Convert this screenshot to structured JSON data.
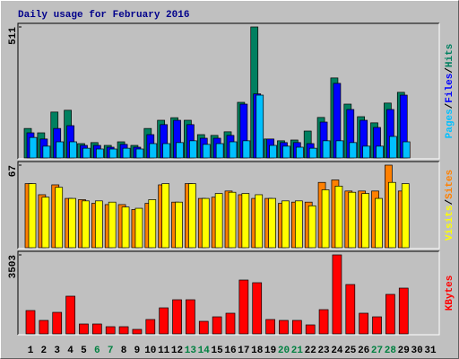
{
  "title": "Daily usage for February 2016",
  "legend_separator": "/",
  "chart_data": [
    {
      "type": "bar",
      "ylim": [
        0,
        511
      ],
      "yticks": [
        511
      ],
      "series": [
        {
          "name": "Hits",
          "color": "#008060",
          "values": [
            115,
            98,
            179,
            186,
            56,
            60,
            49,
            63,
            49,
            115,
            147,
            157,
            147,
            91,
            88,
            102,
            217,
            511,
            74,
            67,
            70,
            105,
            158,
            312,
            210,
            161,
            137,
            214,
            256,
            null,
            null
          ]
        },
        {
          "name": "Files",
          "color": "#0000FF",
          "values": [
            98,
            74,
            115,
            126,
            49,
            49,
            42,
            53,
            42,
            91,
            130,
            147,
            130,
            77,
            77,
            88,
            210,
            250,
            74,
            60,
            60,
            56,
            140,
            291,
            189,
            147,
            119,
            189,
            245,
            null,
            null
          ]
        },
        {
          "name": "Pages",
          "color": "#00C0FF",
          "values": [
            80,
            46,
            63,
            63,
            38,
            35,
            35,
            38,
            35,
            56,
            56,
            60,
            67,
            53,
            56,
            63,
            67,
            245,
            49,
            46,
            42,
            38,
            67,
            67,
            60,
            46,
            46,
            84,
            63,
            null,
            null
          ]
        }
      ]
    },
    {
      "type": "bar",
      "ylim": [
        0,
        67
      ],
      "yticks": [
        67
      ],
      "series": [
        {
          "name": "Sites",
          "color": "#FF8000",
          "values": [
            52,
            43,
            51,
            40,
            39,
            36,
            35,
            35,
            31,
            36,
            51,
            37,
            52,
            40,
            41,
            46,
            43,
            40,
            40,
            36,
            37,
            37,
            53,
            55,
            46,
            46,
            46,
            67,
            46,
            null,
            null
          ]
        },
        {
          "name": "Visits",
          "color": "#FFFF00",
          "values": [
            52,
            41,
            49,
            40,
            38,
            38,
            37,
            33,
            32,
            39,
            52,
            37,
            52,
            40,
            44,
            45,
            44,
            43,
            40,
            38,
            38,
            34,
            47,
            50,
            45,
            44,
            40,
            53,
            52,
            null,
            null
          ]
        }
      ]
    },
    {
      "type": "bar",
      "ylim": [
        0,
        3503
      ],
      "yticks": [
        3503
      ],
      "categories": [
        "1",
        "2",
        "3",
        "4",
        "5",
        "6",
        "7",
        "8",
        "9",
        "10",
        "11",
        "12",
        "13",
        "14",
        "15",
        "16",
        "17",
        "18",
        "19",
        "20",
        "21",
        "22",
        "23",
        "24",
        "25",
        "26",
        "27",
        "28",
        "29",
        "30",
        "31"
      ],
      "label_colors": [
        "#000",
        "#000",
        "#000",
        "#000",
        "#000",
        "#008040",
        "#008040",
        "#000",
        "#000",
        "#000",
        "#000",
        "#000",
        "#008040",
        "#008040",
        "#000",
        "#000",
        "#000",
        "#000",
        "#000",
        "#008040",
        "#008040",
        "#000",
        "#000",
        "#000",
        "#000",
        "#000",
        "#008040",
        "#008040",
        "#000",
        "#000",
        "#000"
      ],
      "series": [
        {
          "name": "KBytes",
          "color": "#FF0000",
          "values": [
            1035,
            597,
            955,
            1672,
            438,
            438,
            318,
            318,
            199,
            637,
            1154,
            1513,
            1513,
            557,
            756,
            916,
            2388,
            2269,
            637,
            597,
            597,
            398,
            1075,
            3503,
            2189,
            916,
            756,
            1752,
            2030,
            null,
            null
          ]
        }
      ]
    }
  ]
}
